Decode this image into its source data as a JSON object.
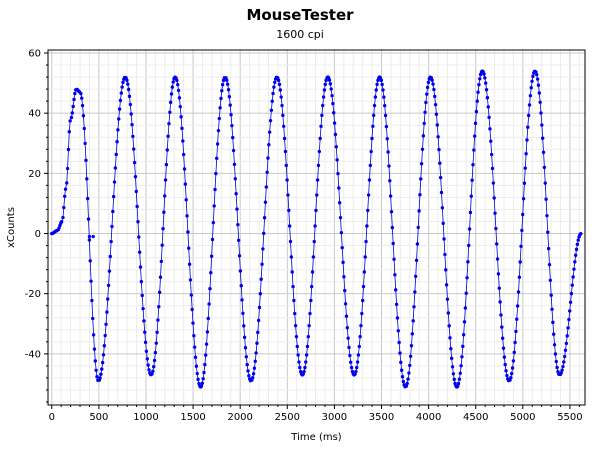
{
  "chart_data": {
    "type": "scatter",
    "title": "MouseTester",
    "subtitle": "1600 cpi",
    "xlabel": "Time (ms)",
    "ylabel": "xCounts",
    "xlim": [
      -40,
      5660
    ],
    "ylim": [
      -57,
      61
    ],
    "x_ticks": [
      0,
      500,
      1000,
      1500,
      2000,
      2500,
      3000,
      3500,
      4000,
      4500,
      5000,
      5500
    ],
    "y_ticks": [
      -40,
      -20,
      0,
      20,
      40,
      60
    ],
    "grid": true,
    "point_color": "#0000ee",
    "line_color": "#0000cc",
    "series": [
      {
        "extrema": [
          [
            0,
            0
          ],
          [
            60,
            1
          ],
          [
            110,
            4
          ],
          [
            150,
            15
          ],
          [
            200,
            38
          ],
          [
            260,
            48
          ],
          [
            300,
            47
          ],
          [
            495,
            -49
          ],
          [
            780,
            52
          ],
          [
            1055,
            -47
          ],
          [
            1310,
            52
          ],
          [
            1580,
            -51
          ],
          [
            1840,
            52
          ],
          [
            2115,
            -49
          ],
          [
            2390,
            52
          ],
          [
            2660,
            -47
          ],
          [
            2930,
            52
          ],
          [
            3210,
            -47
          ],
          [
            3480,
            52
          ],
          [
            3755,
            -51
          ],
          [
            4020,
            52
          ],
          [
            4300,
            -51
          ],
          [
            4570,
            54
          ],
          [
            4855,
            -49
          ],
          [
            5130,
            54
          ],
          [
            5390,
            -47
          ],
          [
            5620,
            0
          ]
        ],
        "outliers": [
          [
            400,
            -1
          ],
          [
            440,
            -1
          ]
        ],
        "sample_interval_ms": 9
      }
    ]
  }
}
